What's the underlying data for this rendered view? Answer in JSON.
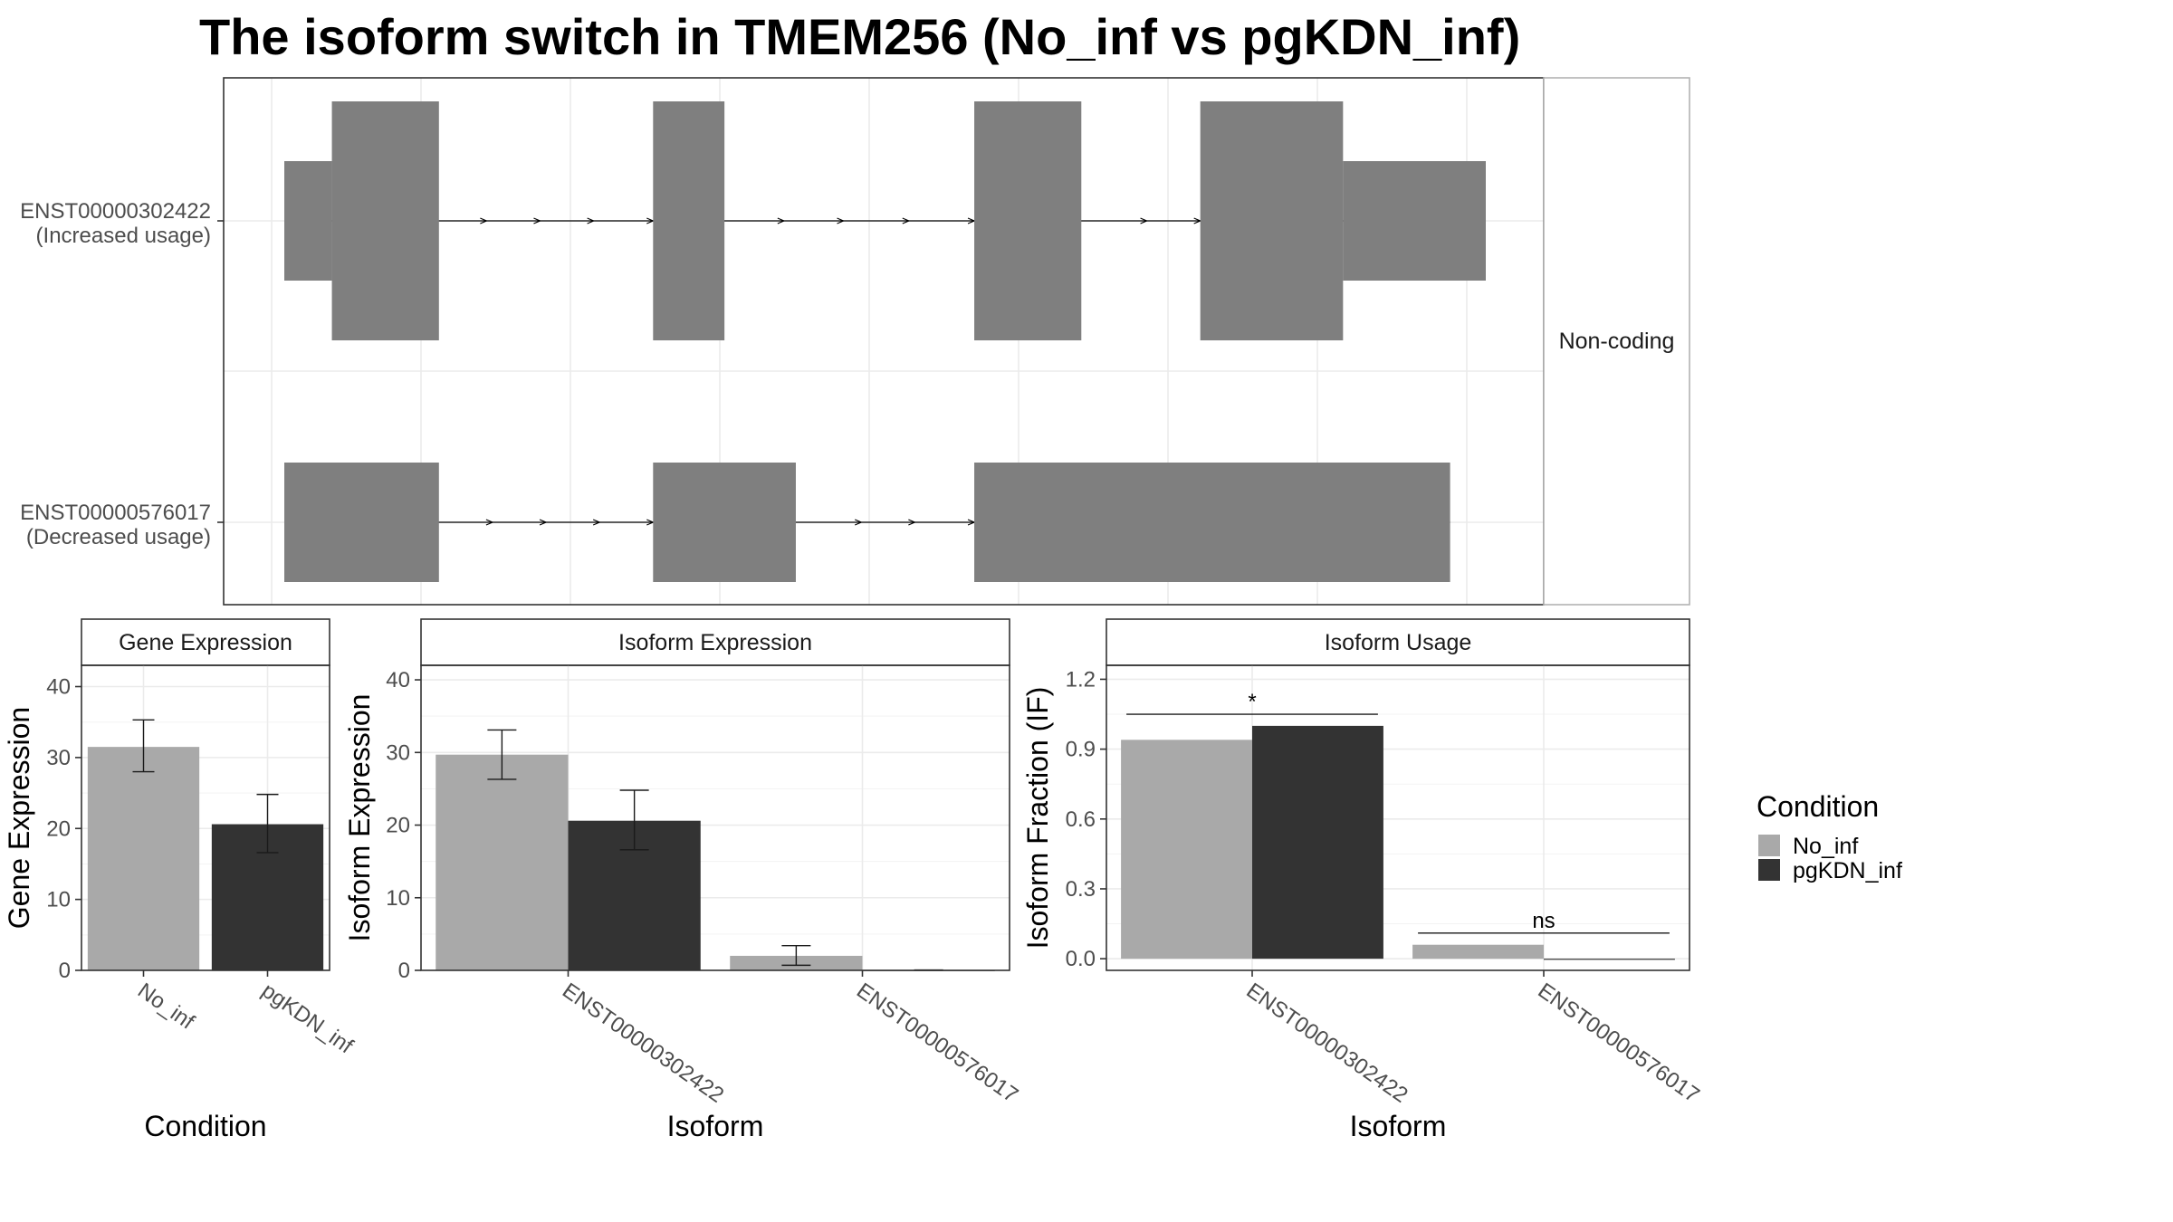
{
  "title": "The isoform switch in TMEM256 (No_inf vs pgKDN_inf)",
  "colors": {
    "No_inf": "#a9a9a9",
    "pgKDN_inf": "#333333",
    "exon": "#7f7f7f"
  },
  "legend": {
    "title": "Condition",
    "items": [
      {
        "label": "No_inf",
        "color": "#a9a9a9"
      },
      {
        "label": "pgKDN_inf",
        "color": "#333333"
      }
    ]
  },
  "chart_data": [
    {
      "type": "other",
      "name": "isoform-structure",
      "facet_label": "Non-coding",
      "transcripts": [
        {
          "label_line1": "ENST00000302422",
          "label_line2": "(Increased usage)",
          "exons": [
            {
              "start": 0.0,
              "end": 0.4,
              "size": "small"
            },
            {
              "start": 0.4,
              "end": 1.3,
              "size": "large"
            },
            {
              "start": 3.1,
              "end": 3.7,
              "size": "large"
            },
            {
              "start": 5.8,
              "end": 6.7,
              "size": "large"
            },
            {
              "start": 7.7,
              "end": 8.9,
              "size": "large"
            },
            {
              "start": 8.9,
              "end": 10.1,
              "size": "small"
            }
          ],
          "intron_arrows": [
            1.7,
            2.15,
            2.6,
            3.1,
            4.2,
            4.7,
            5.25,
            5.8,
            7.25,
            7.7
          ]
        },
        {
          "label_line1": "ENST00000576017",
          "label_line2": "(Decreased usage)",
          "exons": [
            {
              "start": 0.0,
              "end": 1.3,
              "size": "small"
            },
            {
              "start": 3.1,
              "end": 4.3,
              "size": "small"
            },
            {
              "start": 5.8,
              "end": 9.8,
              "size": "small"
            }
          ],
          "intron_arrows": [
            1.75,
            2.2,
            2.65,
            3.1,
            4.85,
            5.3,
            5.8
          ]
        }
      ]
    },
    {
      "type": "bar",
      "name": "gene-expression",
      "strip_title": "Gene Expression",
      "xlabel": "Condition",
      "ylabel": "Gene Expression",
      "categories": [
        "No_inf",
        "pgKDN_inf"
      ],
      "values": [
        31.5,
        20.6
      ],
      "errors_low": [
        28.0,
        16.6
      ],
      "errors_high": [
        35.3,
        24.8
      ],
      "ylim": [
        0,
        43
      ],
      "yticks": [
        0,
        10,
        20,
        30,
        40
      ]
    },
    {
      "type": "bar",
      "name": "isoform-expression",
      "strip_title": "Isoform Expression",
      "xlabel": "Isoform",
      "ylabel": "Isoform Expression",
      "categories": [
        "ENST00000302422",
        "ENST00000576017"
      ],
      "series": [
        {
          "name": "No_inf",
          "values": [
            29.7,
            2.0
          ],
          "errors_low": [
            26.3,
            0.7
          ],
          "errors_high": [
            33.1,
            3.4
          ]
        },
        {
          "name": "pgKDN_inf",
          "values": [
            20.6,
            0.05
          ],
          "errors_low": [
            16.6,
            0.05
          ],
          "errors_high": [
            24.8,
            0.05
          ]
        }
      ],
      "ylim": [
        0,
        42
      ],
      "yticks": [
        0,
        10,
        20,
        30,
        40
      ]
    },
    {
      "type": "bar",
      "name": "isoform-usage",
      "strip_title": "Isoform Usage",
      "xlabel": "Isoform",
      "ylabel": "Isoform Fraction (IF)",
      "categories": [
        "ENST00000302422",
        "ENST00000576017"
      ],
      "series": [
        {
          "name": "No_inf",
          "values": [
            0.94,
            0.06
          ]
        },
        {
          "name": "pgKDN_inf",
          "values": [
            1.0,
            0.0
          ]
        }
      ],
      "significance": [
        {
          "category": "ENST00000302422",
          "label": "*",
          "y": 1.05
        },
        {
          "category": "ENST00000576017",
          "label": "ns",
          "y": 0.11
        }
      ],
      "ylim": [
        -0.05,
        1.26
      ],
      "yticks": [
        0.0,
        0.3,
        0.6,
        0.9,
        1.2
      ],
      "ytick_labels": [
        "0.0",
        "0.3",
        "0.6",
        "0.9",
        "1.2"
      ]
    }
  ]
}
